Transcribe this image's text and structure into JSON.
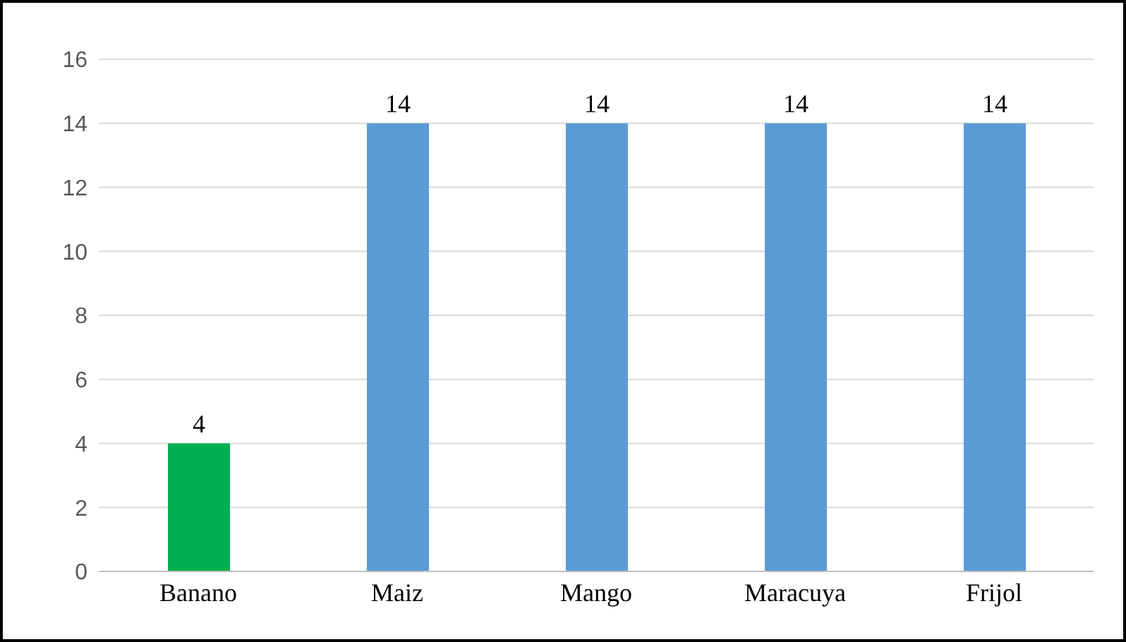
{
  "chart_data": {
    "type": "bar",
    "categories": [
      "Banano",
      "Maiz",
      "Mango",
      "Maracuya",
      "Frijol"
    ],
    "values": [
      4,
      14,
      14,
      14,
      14
    ],
    "colors": [
      "#00b050",
      "#5b9bd5",
      "#5b9bd5",
      "#5b9bd5",
      "#5b9bd5"
    ],
    "ylim": [
      0,
      16
    ],
    "yticks": [
      0,
      2,
      4,
      6,
      8,
      10,
      12,
      14,
      16
    ],
    "grid": "y",
    "data_labels": true
  }
}
